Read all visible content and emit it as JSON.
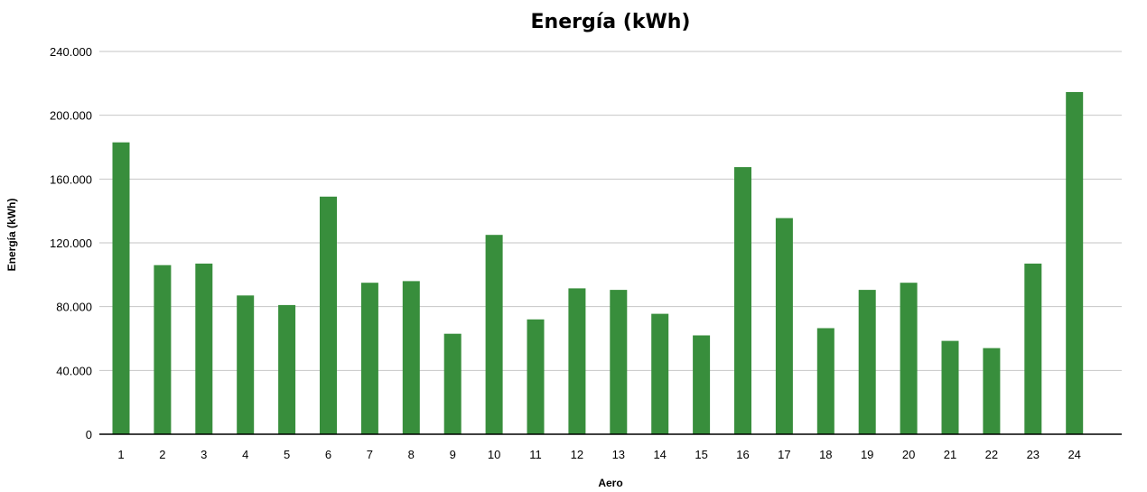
{
  "chart_data": {
    "type": "bar",
    "title": "Energía (kWh)",
    "xlabel": "Aero",
    "ylabel": "Energía (kWh)",
    "categories": [
      "1",
      "2",
      "3",
      "4",
      "5",
      "6",
      "7",
      "8",
      "9",
      "10",
      "11",
      "12",
      "13",
      "14",
      "15",
      "16",
      "17",
      "18",
      "19",
      "20",
      "21",
      "22",
      "23",
      "24"
    ],
    "series": [
      {
        "values": [
          183000,
          106000,
          107000,
          87000,
          81000,
          149000,
          95000,
          96000,
          63000,
          125000,
          72000,
          91500,
          90500,
          75500,
          62000,
          167500,
          135500,
          66500,
          90500,
          95000,
          58500,
          54000,
          107000,
          214500
        ],
        "color": "#388e3c"
      }
    ],
    "ylim": [
      0,
      240000
    ],
    "yticks": [
      0,
      40000,
      80000,
      120000,
      160000,
      200000,
      240000
    ],
    "ytick_labels": [
      "0",
      "40.000",
      "80.000",
      "120.000",
      "160.000",
      "200.000",
      "240.000"
    ],
    "grid": true,
    "legend": "none"
  }
}
